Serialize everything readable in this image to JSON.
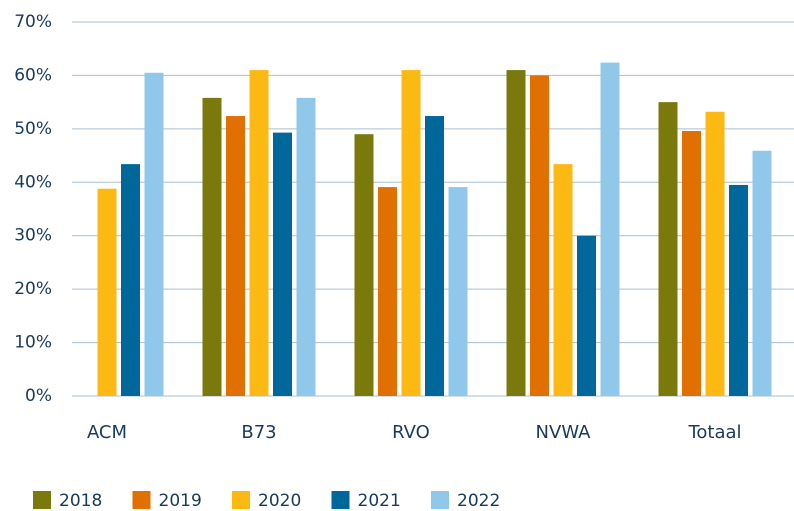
{
  "chart_data": {
    "type": "bar",
    "categories": [
      "ACM",
      "B73",
      "RVO",
      "NVWA",
      "Totaal"
    ],
    "series": [
      {
        "name": "2018",
        "color": "#7a7a0c",
        "values": [
          null,
          55.8,
          49,
          61,
          55
        ]
      },
      {
        "name": "2019",
        "color": "#e07000",
        "values": [
          null,
          52.4,
          39.1,
          60,
          49.6
        ]
      },
      {
        "name": "2020",
        "color": "#fdb913",
        "values": [
          38.8,
          61,
          61,
          43.4,
          53.2
        ]
      },
      {
        "name": "2021",
        "color": "#00679a",
        "values": [
          43.4,
          49.3,
          52.4,
          30,
          39.5
        ]
      },
      {
        "name": "2022",
        "color": "#8fc8e8",
        "values": [
          60.5,
          55.8,
          39.1,
          62.4,
          45.9
        ]
      }
    ],
    "ylim": [
      0,
      70
    ],
    "yticks": [
      {
        "value": 0,
        "label": "0%"
      },
      {
        "value": 10,
        "label": "10%"
      },
      {
        "value": 20,
        "label": "20%"
      },
      {
        "value": 30,
        "label": "30%"
      },
      {
        "value": 40,
        "label": "40%"
      },
      {
        "value": 50,
        "label": "50%"
      },
      {
        "value": 60,
        "label": "60%"
      },
      {
        "value": 70,
        "label": "70%"
      }
    ],
    "grid": true,
    "legend": "bottom"
  }
}
